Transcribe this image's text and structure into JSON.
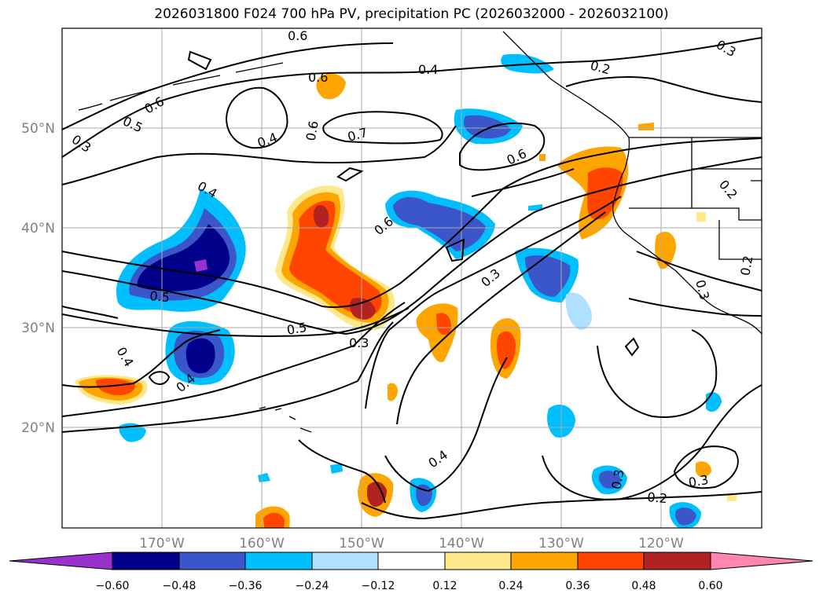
{
  "title": "2026031800 F024 700 hPa PV, precipitation PC (2026032000 - 2026032100)",
  "lon_ticks": [
    "170°W",
    "160°W",
    "150°W",
    "140°W",
    "130°W",
    "120°W"
  ],
  "lat_ticks": [
    "50°N",
    "40°N",
    "30°N",
    "20°N"
  ],
  "colorbar": {
    "labels": [
      "−0.60",
      "−0.48",
      "−0.36",
      "−0.24",
      "−0.12",
      "0.12",
      "0.24",
      "0.36",
      "0.48",
      "0.60"
    ],
    "colors": [
      "#9932cc",
      "#00008b",
      "#3b56c8",
      "#00bfff",
      "#b0e0ff",
      "#ffffff",
      "#ffe88a",
      "#ffa500",
      "#ff4500",
      "#b22222",
      "#ff86b0"
    ]
  },
  "contour_labels": [
    "0.6",
    "0.6",
    "0.5",
    "0.3",
    "0.6",
    "0.6",
    "0.4",
    "0.7",
    "0.4",
    "0.6",
    "0.2",
    "0.3",
    "0.4",
    "0.6",
    "0.5",
    "0.5",
    "0.3",
    "0.3",
    "0.4",
    "0.4",
    "0.4",
    "0.3",
    "0.2",
    "0.3",
    "0.2",
    "0.2",
    "0.3"
  ]
}
